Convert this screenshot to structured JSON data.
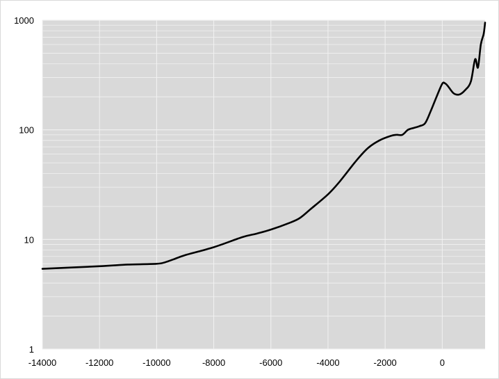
{
  "colors": {
    "plot_background": "#d9d9d9",
    "gridline": "#f2f2f2",
    "series_line": "#000000",
    "chart_background": "#ffffff"
  },
  "chart_data": {
    "type": "line",
    "title": "",
    "xlabel": "",
    "ylabel": "",
    "xlim": [
      -14000,
      1500
    ],
    "ylim": [
      1,
      1000
    ],
    "y_scale": "log",
    "grid": "on",
    "legend": "none",
    "x_ticks": [
      -14000,
      -12000,
      -10000,
      -8000,
      -6000,
      -4000,
      -2000,
      0
    ],
    "x_tick_labels": [
      "-14000",
      "-12000",
      "-10000",
      "-8000",
      "-6000",
      "-4000",
      "-2000",
      "0"
    ],
    "y_ticks": [
      1,
      10,
      100,
      1000
    ],
    "y_tick_labels": [
      "1",
      "10",
      "100",
      "1000"
    ],
    "series": [
      {
        "x": [
          -14000,
          -12000,
          -11000,
          -10000,
          -9700,
          -9400,
          -9000,
          -8000,
          -7000,
          -6500,
          -6000,
          -5400,
          -5000,
          -4600,
          -4000,
          -3600,
          -3000,
          -2600,
          -2200,
          -1800,
          -1600,
          -1400,
          -1200,
          -1000,
          -800,
          -600,
          -400,
          -200,
          0,
          100,
          200,
          400,
          600,
          800,
          1000,
          1150,
          1250,
          1350,
          1450,
          1500
        ],
        "values": [
          5.4,
          5.7,
          5.9,
          6.0,
          6.2,
          6.6,
          7.2,
          8.5,
          10.5,
          11.3,
          12.3,
          14.0,
          15.6,
          19.0,
          25.8,
          33.5,
          52.7,
          68.2,
          80.0,
          88.0,
          90.0,
          90.0,
          100.0,
          104.0,
          108.0,
          115.0,
          149.0,
          200.0,
          263.0,
          265.0,
          250.0,
          215.0,
          210.0,
          230.0,
          275.0,
          440.0,
          370.0,
          600.0,
          750.0,
          950.0
        ]
      }
    ]
  }
}
